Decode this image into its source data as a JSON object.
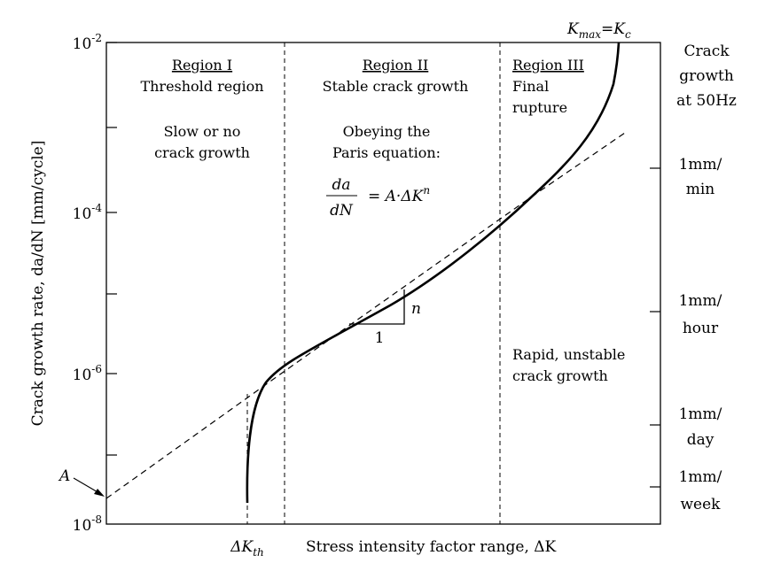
{
  "chart_data": {
    "type": "line",
    "title": "",
    "xlabel": "Stress intensity factor range, ΔK",
    "ylabel": "Crack growth rate, da/dN [mm/cycle]",
    "y_scale": "log",
    "ylim": [
      1e-08,
      0.01
    ],
    "y_ticks": [
      {
        "base": "10",
        "exp": "-2"
      },
      {
        "base": "10",
        "exp": "-4"
      },
      {
        "base": "10",
        "exp": "-6"
      },
      {
        "base": "10",
        "exp": "-8"
      }
    ],
    "x_ticks": [
      "ΔK_th"
    ],
    "right_axis": {
      "title_lines": [
        "Crack",
        "growth",
        "at 50Hz"
      ],
      "ticks": [
        {
          "lines": [
            "1mm/",
            "min"
          ]
        },
        {
          "lines": [
            "1mm/",
            "hour"
          ]
        },
        {
          "lines": [
            "1mm/",
            "day"
          ]
        },
        {
          "lines": [
            "1mm/",
            "week"
          ]
        }
      ]
    },
    "regions": [
      {
        "name": "Region I",
        "subtitle": "Threshold region",
        "notes": [
          "Slow or no",
          "crack growth"
        ]
      },
      {
        "name": "Region II",
        "subtitle": "Stable crack growth",
        "notes": [
          "Obeying the",
          "Paris equation:"
        ]
      },
      {
        "name": "Region III",
        "subtitle": "Final rupture",
        "subtitle_lines": [
          "Final",
          "rupture"
        ],
        "notes": [
          "Rapid, unstable",
          "crack growth"
        ]
      }
    ],
    "annotations": {
      "kmax": "K_max=K_c",
      "intercept_label": "A",
      "slope_run": "1",
      "slope_rise": "n",
      "equation": {
        "num": "da",
        "den": "dN",
        "rhs_prefix": "= A·ΔK",
        "rhs_exp": "n"
      }
    },
    "series": [
      {
        "style": "solid",
        "x": [
          0.0,
          0.0,
          0.1,
          0.15,
          0.25,
          0.45,
          0.7,
          0.98,
          1.2,
          1.5
        ],
        "y": [
          6.7e-08,
          1e-07,
          1.5e-07,
          2.5e-07,
          5e-07,
          7.7e-07,
          9.8e-07,
          1.2e-06,
          1.5e-06,
          2e-06
        ]
      },
      {
        "style": "dashed",
        "x": [
          -0.8,
          5.0
        ],
        "y": [
          2e-08,
          0.001
        ]
      }
    ],
    "grid": false
  }
}
